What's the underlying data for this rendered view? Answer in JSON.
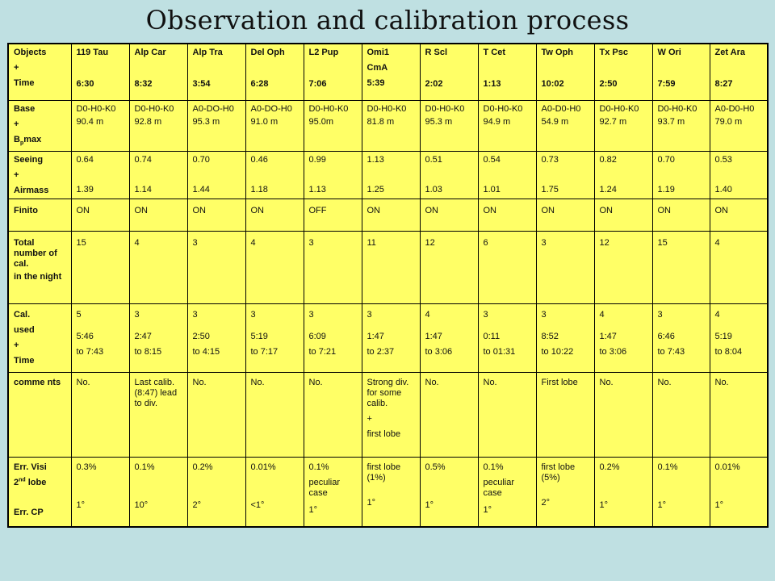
{
  "title": "Observation and calibration process",
  "header": {
    "row_label": [
      "Objects",
      "+",
      "Time"
    ],
    "objects": [
      {
        "name": "119 Tau",
        "time": "6:30"
      },
      {
        "name": "Alp Car",
        "time": "8:32"
      },
      {
        "name": "Alp Tra",
        "time": "3:54"
      },
      {
        "name": "Del Oph",
        "time": "6:28"
      },
      {
        "name": "L2 Pup",
        "time": "7:06"
      },
      {
        "name": "Omi1",
        "name2": "CmA",
        "time": "5:39"
      },
      {
        "name": "R Scl",
        "time": "2:02"
      },
      {
        "name": "T Cet",
        "time": "1:13"
      },
      {
        "name": "Tw Oph",
        "time": "10:02"
      },
      {
        "name": "Tx Psc",
        "time": "2:50"
      },
      {
        "name": "W Ori",
        "time": "7:59"
      },
      {
        "name": "Zet Ara",
        "time": "8:27"
      }
    ]
  },
  "base": {
    "label": [
      "Base",
      "+",
      "B",
      "p",
      "max"
    ],
    "cells": [
      {
        "base": "D0-H0-K0",
        "bp": "90.4 m"
      },
      {
        "base": "D0-H0-K0",
        "bp": "92.8 m"
      },
      {
        "base": "A0-DO-H0",
        "bp": "95.3 m"
      },
      {
        "base": "A0-DO-H0",
        "bp": "91.0 m"
      },
      {
        "base": "D0-H0-K0",
        "bp": "95.0m"
      },
      {
        "base": "D0-H0-K0",
        "bp": "81.8 m"
      },
      {
        "base": "D0-H0-K0",
        "bp": "95.3 m"
      },
      {
        "base": "D0-H0-K0",
        "bp": "94.9 m"
      },
      {
        "base": "A0-D0-H0",
        "bp": "54.9 m"
      },
      {
        "base": "D0-H0-K0",
        "bp": "92.7 m"
      },
      {
        "base": "D0-H0-K0",
        "bp": "93.7 m"
      },
      {
        "base": "A0-D0-H0",
        "bp": "79.0 m"
      }
    ]
  },
  "seeing": {
    "label": [
      "Seeing",
      "+",
      "Airmass"
    ],
    "cells": [
      {
        "seeing": "0.64",
        "airmass": "1.39"
      },
      {
        "seeing": "0.74",
        "airmass": "1.14"
      },
      {
        "seeing": "0.70",
        "airmass": "1.44"
      },
      {
        "seeing": "0.46",
        "airmass": "1.18"
      },
      {
        "seeing": "0.99",
        "airmass": "1.13"
      },
      {
        "seeing": "1.13",
        "airmass": "1.25"
      },
      {
        "seeing": "0.51",
        "airmass": "1.03"
      },
      {
        "seeing": "0.54",
        "airmass": "1.01"
      },
      {
        "seeing": "0.73",
        "airmass": "1.75"
      },
      {
        "seeing": "0.82",
        "airmass": "1.24"
      },
      {
        "seeing": "0.70",
        "airmass": "1.19"
      },
      {
        "seeing": "0.53",
        "airmass": "1.40"
      }
    ]
  },
  "finito": {
    "label": "Finito",
    "cells": [
      "ON",
      "ON",
      "ON",
      "ON",
      "OFF",
      "ON",
      "ON",
      "ON",
      "ON",
      "ON",
      "ON",
      "ON"
    ]
  },
  "total": {
    "label": [
      "Total number of cal.",
      "in the night"
    ],
    "cells": [
      "15",
      "4",
      "3",
      "4",
      "3",
      "11",
      "12",
      "6",
      "3",
      "12",
      "15",
      "4"
    ]
  },
  "calused": {
    "label": [
      "Cal.",
      "used",
      "+",
      "Time"
    ],
    "cells": [
      {
        "n": "5",
        "from": "5:46",
        "to": "to 7:43"
      },
      {
        "n": "3",
        "from": "2:47",
        "to": "to 8:15"
      },
      {
        "n": "3",
        "from": "2:50",
        "to": "to 4:15"
      },
      {
        "n": "3",
        "from": "5:19",
        "to": "to 7:17"
      },
      {
        "n": "3",
        "from": "6:09",
        "to": "to 7:21"
      },
      {
        "n": "3",
        "from": "1:47",
        "to": "to 2:37"
      },
      {
        "n": "4",
        "from": "1:47",
        "to": "to 3:06"
      },
      {
        "n": "3",
        "from": "0:11",
        "to": "to 01:31"
      },
      {
        "n": "3",
        "from": "8:52",
        "to": "to 10:22"
      },
      {
        "n": "4",
        "from": "1:47",
        "to": "to 3:06"
      },
      {
        "n": "3",
        "from": "6:46",
        "to": "to 7:43"
      },
      {
        "n": "4",
        "from": "5:19",
        "to": "to 8:04"
      }
    ]
  },
  "comments": {
    "label": "comme nts",
    "cells": [
      [
        "No."
      ],
      [
        "Last calib. (8:47) lead to div."
      ],
      [
        "No."
      ],
      [
        "No."
      ],
      [
        "No."
      ],
      [
        "Strong div. for some calib.",
        "+",
        "first lobe"
      ],
      [
        "No."
      ],
      [
        "No."
      ],
      [
        "First lobe"
      ],
      [
        "No."
      ],
      [
        "No."
      ],
      [
        "No."
      ]
    ]
  },
  "err": {
    "label_visi": "Err. Visi",
    "label_lobe_a": "2",
    "label_lobe_sup": "nd",
    "label_lobe_b": " lobe",
    "label_cp": "Err. CP",
    "cells": [
      {
        "visi": [
          "0.3%"
        ],
        "cp": "1°"
      },
      {
        "visi": [
          "0.1%"
        ],
        "cp": "10°"
      },
      {
        "visi": [
          "0.2%"
        ],
        "cp": "2°"
      },
      {
        "visi": [
          "0.01%"
        ],
        "cp": "<1°"
      },
      {
        "visi": [
          "0.1%",
          "peculiar case"
        ],
        "cp": "1°"
      },
      {
        "visi": [
          "first lobe (1%)"
        ],
        "cp": "1°"
      },
      {
        "visi": [
          "0.5%"
        ],
        "cp": "1°"
      },
      {
        "visi": [
          "0.1%",
          "peculiar case"
        ],
        "cp": "1°"
      },
      {
        "visi": [
          "first lobe (5%)"
        ],
        "cp": "2°"
      },
      {
        "visi": [
          "0.2%"
        ],
        "cp": "1°"
      },
      {
        "visi": [
          "0.1%"
        ],
        "cp": "1°"
      },
      {
        "visi": [
          "0.01%"
        ],
        "cp": "1°"
      }
    ]
  }
}
